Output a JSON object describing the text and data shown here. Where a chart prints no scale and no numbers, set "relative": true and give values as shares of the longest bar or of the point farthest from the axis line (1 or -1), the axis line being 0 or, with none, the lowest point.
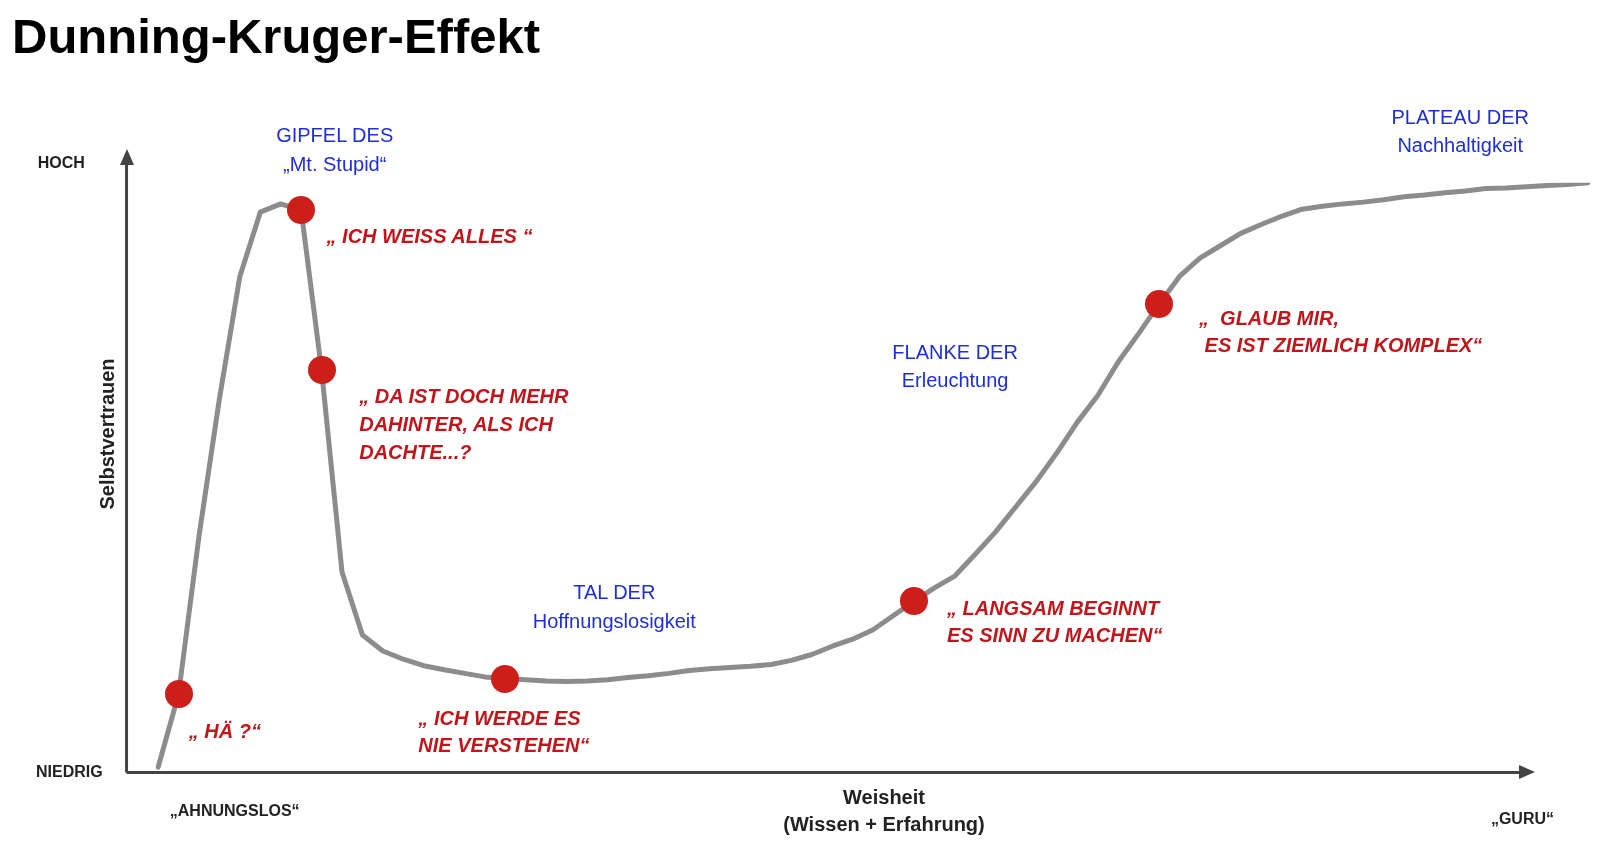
{
  "chart_data": {
    "type": "line",
    "title": "Dunning-Kruger-Effekt",
    "xlabel": "Weisheit\n(Wissen + Erfahrung)",
    "ylabel": "Selbstvertrauen",
    "relative": true,
    "categories": [
      null,
      null,
      null,
      null,
      null,
      null,
      null,
      null,
      null,
      null,
      null,
      null,
      null,
      null,
      null,
      null,
      null,
      null,
      null,
      null,
      null,
      null,
      null,
      null,
      null,
      null,
      null,
      null,
      null,
      null,
      null,
      null,
      null,
      null,
      null,
      null,
      null,
      null,
      null,
      null,
      null,
      null,
      null,
      null,
      null,
      null,
      null,
      null,
      null,
      null,
      null,
      null,
      null,
      null,
      null,
      null,
      null,
      null,
      null,
      null,
      null,
      null,
      null,
      null,
      null,
      null,
      null,
      null,
      null,
      null,
      null
    ],
    "series": [
      {
        "color": "#8c8c8c",
        "values": [
          0.009,
          0.133,
          0.401,
          0.634,
          0.841,
          0.95,
          0.964,
          0.953,
          0.682,
          0.34,
          0.233,
          0.206,
          0.192,
          0.181,
          0.174,
          0.168,
          0.162,
          0.159,
          0.157,
          0.155,
          0.154,
          0.155,
          0.157,
          0.161,
          0.164,
          0.168,
          0.173,
          0.176,
          0.178,
          0.18,
          0.183,
          0.19,
          0.2,
          0.214,
          0.226,
          0.242,
          0.266,
          0.29,
          0.313,
          0.333,
          0.37,
          0.408,
          0.451,
          0.494,
          0.542,
          0.594,
          0.639,
          0.696,
          0.744,
          0.794,
          0.841,
          0.872,
          0.893,
          0.914,
          0.929,
          0.943,
          0.955,
          0.96,
          0.964,
          0.967,
          0.971,
          0.976,
          0.979,
          0.983,
          0.986,
          0.99,
          0.991,
          0.993,
          0.995,
          0.997,
          1
        ]
      }
    ],
    "annotations": [
      "GIPFEL DES\n„Mt. Stupid“",
      "TAL DER\nHoffnungslosigkeit",
      "FLANKE DER\nErleuchtung",
      "PLATEAU DER\nNachhaltigkeit",
      "„ HÄ ?“",
      "„ ICH WEISS ALLES “",
      "„ DA IST DOCH MEHR\nDAHINTER, ALS ICH\nDACHTE...?",
      "„ ICH WERDE ES\nNIE VERSTEHEN“",
      "„ LANGSAM BEGINNT\nES SINN ZU MACHEN“",
      "„  GLAUB MIR,\n ES IST ZIEMLICH KOMPLEX“",
      "HOCH",
      "NIEDRIG",
      "„AHNUNGSLOS“",
      "„GURU“"
    ]
  }
}
